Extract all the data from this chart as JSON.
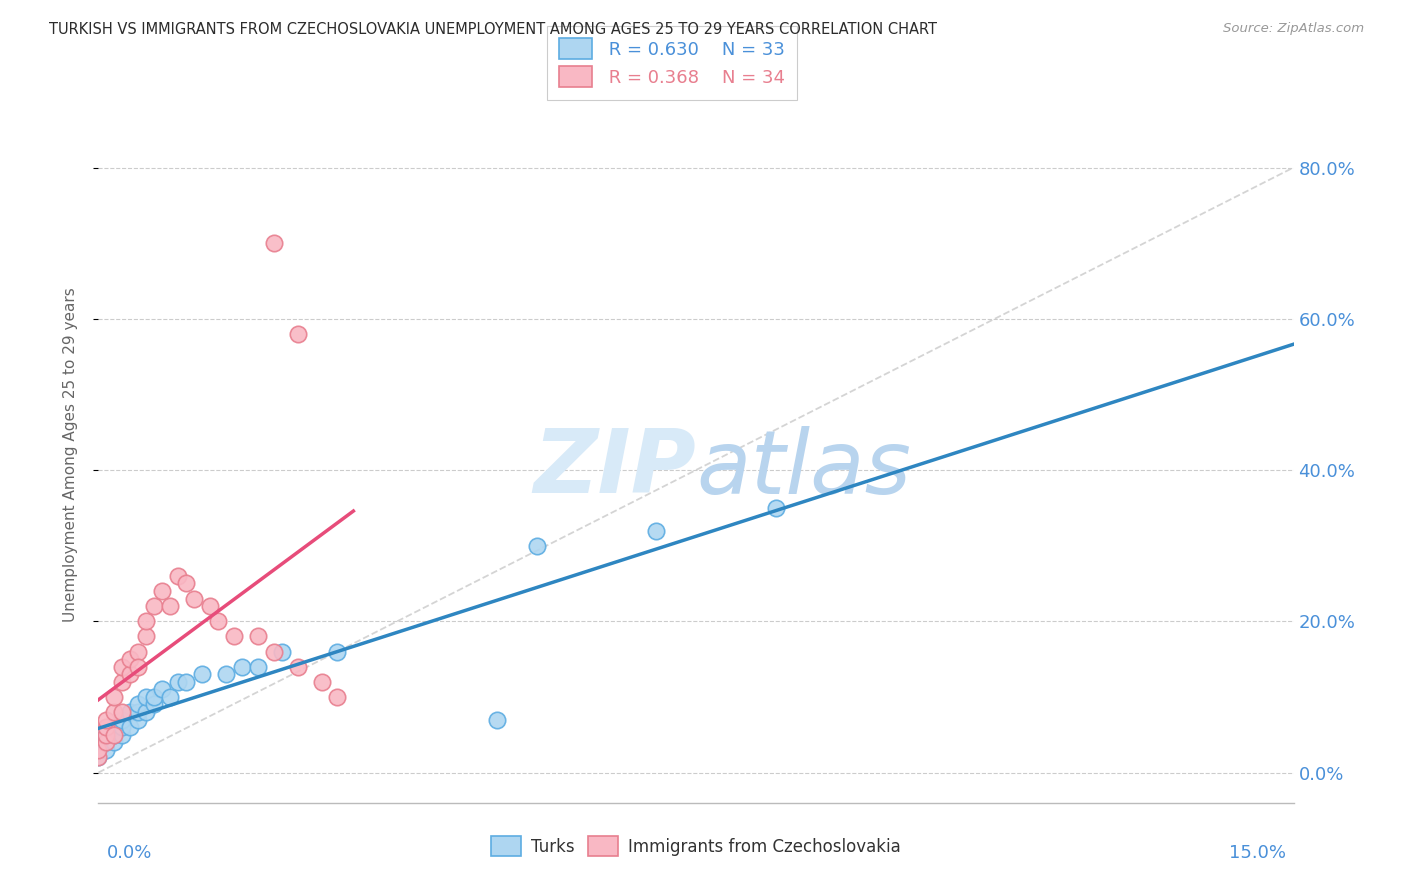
{
  "title": "TURKISH VS IMMIGRANTS FROM CZECHOSLOVAKIA UNEMPLOYMENT AMONG AGES 25 TO 29 YEARS CORRELATION CHART",
  "source": "Source: ZipAtlas.com",
  "ylabel": "Unemployment Among Ages 25 to 29 years",
  "ytick_labels": [
    "0.0%",
    "20.0%",
    "40.0%",
    "60.0%",
    "80.0%"
  ],
  "ytick_values": [
    0.0,
    0.2,
    0.4,
    0.6,
    0.8
  ],
  "xmin": 0.0,
  "xmax": 0.15,
  "ymin": -0.04,
  "ymax": 0.88,
  "R_turks": 0.63,
  "N_turks": 33,
  "R_czech": 0.368,
  "N_czech": 34,
  "legend_label_turks": "Turks",
  "legend_label_czech": "Immigrants from Czechoslovakia",
  "color_turks": "#AED6F1",
  "color_czech": "#F9B8C4",
  "color_turks_edge": "#5DADE2",
  "color_czech_edge": "#E87F8F",
  "color_axis_labels": "#4A90D9",
  "color_title": "#2C2C2C",
  "color_source": "#999999",
  "diag_line_color": "#D0D0D0",
  "reg_line_color_turks": "#2E86C1",
  "reg_line_color_czech": "#E74C7A",
  "turks_x": [
    0.0,
    0.001,
    0.001,
    0.001,
    0.002,
    0.002,
    0.002,
    0.003,
    0.003,
    0.003,
    0.004,
    0.004,
    0.005,
    0.005,
    0.005,
    0.006,
    0.006,
    0.007,
    0.007,
    0.008,
    0.009,
    0.01,
    0.011,
    0.013,
    0.016,
    0.018,
    0.02,
    0.023,
    0.03,
    0.05,
    0.055,
    0.07,
    0.085
  ],
  "turks_y": [
    0.02,
    0.03,
    0.04,
    0.05,
    0.04,
    0.05,
    0.06,
    0.05,
    0.06,
    0.07,
    0.06,
    0.08,
    0.07,
    0.08,
    0.09,
    0.08,
    0.1,
    0.09,
    0.1,
    0.11,
    0.1,
    0.12,
    0.12,
    0.13,
    0.13,
    0.14,
    0.14,
    0.16,
    0.16,
    0.07,
    0.3,
    0.32,
    0.35
  ],
  "czech_x": [
    0.0,
    0.0,
    0.001,
    0.001,
    0.001,
    0.001,
    0.002,
    0.002,
    0.002,
    0.003,
    0.003,
    0.003,
    0.004,
    0.004,
    0.005,
    0.005,
    0.006,
    0.006,
    0.007,
    0.008,
    0.009,
    0.01,
    0.011,
    0.012,
    0.014,
    0.015,
    0.017,
    0.02,
    0.022,
    0.025,
    0.028,
    0.03,
    0.022,
    0.025
  ],
  "czech_y": [
    0.02,
    0.03,
    0.04,
    0.05,
    0.06,
    0.07,
    0.05,
    0.08,
    0.1,
    0.08,
    0.12,
    0.14,
    0.13,
    0.15,
    0.16,
    0.14,
    0.18,
    0.2,
    0.22,
    0.24,
    0.22,
    0.26,
    0.25,
    0.23,
    0.22,
    0.2,
    0.18,
    0.18,
    0.16,
    0.14,
    0.12,
    0.1,
    0.7,
    0.58
  ]
}
